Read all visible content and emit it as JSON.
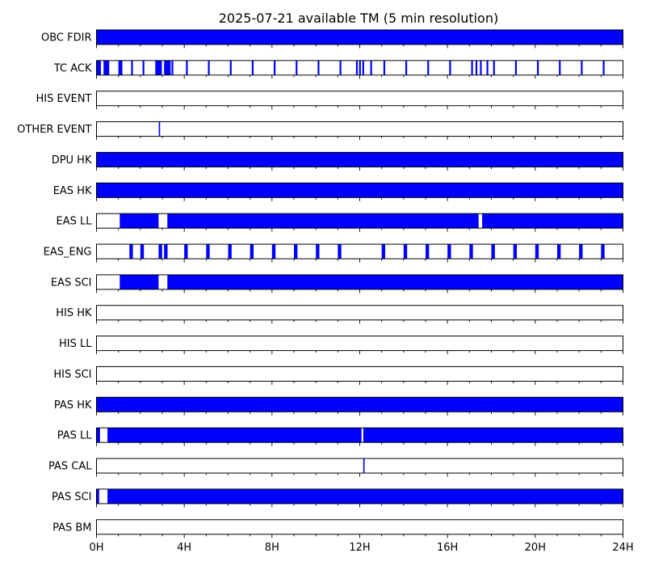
{
  "chart_data": {
    "type": "timeline",
    "title": "2025-07-21 available TM (5 min resolution)",
    "x_unit": "hours",
    "xlim": [
      0,
      24
    ],
    "x_ticks": [
      0,
      4,
      8,
      12,
      16,
      20,
      24
    ],
    "x_tick_labels": [
      "0H",
      "4H",
      "8H",
      "12H",
      "16H",
      "20H",
      "24H"
    ],
    "minor_tick_step": 1,
    "fill_color": "#0000ff",
    "rows": [
      {
        "label": "OBC FDIR",
        "intervals": [
          [
            0,
            24
          ]
        ]
      },
      {
        "label": "TC ACK",
        "intervals": [
          [
            0.02,
            0.2
          ],
          [
            0.32,
            0.58
          ],
          [
            1.0,
            1.18
          ],
          [
            1.58,
            1.66
          ],
          [
            2.1,
            2.18
          ],
          [
            2.68,
            2.98
          ],
          [
            3.08,
            3.38
          ],
          [
            3.42,
            3.5
          ],
          [
            4.08,
            4.16
          ],
          [
            5.08,
            5.16
          ],
          [
            6.08,
            6.16
          ],
          [
            7.08,
            7.16
          ],
          [
            8.08,
            8.16
          ],
          [
            9.08,
            9.16
          ],
          [
            10.08,
            10.16
          ],
          [
            11.08,
            11.16
          ],
          [
            11.83,
            11.91
          ],
          [
            11.97,
            12.05
          ],
          [
            12.12,
            12.2
          ],
          [
            12.48,
            12.56
          ],
          [
            13.08,
            13.16
          ],
          [
            14.08,
            14.16
          ],
          [
            15.08,
            15.16
          ],
          [
            16.08,
            16.16
          ],
          [
            17.08,
            17.16
          ],
          [
            17.28,
            17.36
          ],
          [
            17.48,
            17.56
          ],
          [
            17.78,
            17.86
          ],
          [
            18.08,
            18.16
          ],
          [
            19.08,
            19.16
          ],
          [
            20.08,
            20.16
          ],
          [
            21.08,
            21.16
          ],
          [
            22.08,
            22.16
          ],
          [
            23.08,
            23.16
          ]
        ]
      },
      {
        "label": "HIS EVENT",
        "intervals": []
      },
      {
        "label": "OTHER EVENT",
        "intervals": [
          [
            2.84,
            2.9
          ]
        ]
      },
      {
        "label": "DPU HK",
        "intervals": [
          [
            0,
            24
          ]
        ]
      },
      {
        "label": "EAS HK",
        "intervals": [
          [
            0,
            24
          ]
        ]
      },
      {
        "label": "EAS LL",
        "intervals": [
          [
            1.06,
            2.83
          ],
          [
            3.23,
            17.42
          ],
          [
            17.58,
            24
          ]
        ]
      },
      {
        "label": "EAS_ENG",
        "intervals": [
          [
            1.5,
            1.66
          ],
          [
            2.0,
            2.16
          ],
          [
            2.83,
            2.99
          ],
          [
            3.08,
            3.24
          ],
          [
            4.0,
            4.16
          ],
          [
            5.0,
            5.16
          ],
          [
            6.0,
            6.16
          ],
          [
            7.0,
            7.16
          ],
          [
            8.0,
            8.16
          ],
          [
            9.0,
            9.16
          ],
          [
            10.0,
            10.16
          ],
          [
            11.0,
            11.16
          ],
          [
            13.0,
            13.16
          ],
          [
            14.0,
            14.16
          ],
          [
            15.0,
            15.16
          ],
          [
            16.0,
            16.16
          ],
          [
            17.0,
            17.16
          ],
          [
            18.0,
            18.16
          ],
          [
            19.0,
            19.16
          ],
          [
            20.0,
            20.16
          ],
          [
            21.0,
            21.16
          ],
          [
            22.0,
            22.16
          ],
          [
            23.0,
            23.16
          ]
        ]
      },
      {
        "label": "EAS SCI",
        "intervals": [
          [
            1.06,
            2.83
          ],
          [
            3.23,
            24
          ]
        ]
      },
      {
        "label": "HIS HK",
        "intervals": []
      },
      {
        "label": "HIS LL",
        "intervals": []
      },
      {
        "label": "HIS SCI",
        "intervals": []
      },
      {
        "label": "PAS HK",
        "intervals": [
          [
            0,
            24
          ]
        ]
      },
      {
        "label": "PAS LL",
        "intervals": [
          [
            0.0,
            0.16
          ],
          [
            0.5,
            12.08
          ],
          [
            12.16,
            24
          ]
        ]
      },
      {
        "label": "PAS CAL",
        "intervals": [
          [
            12.16,
            12.22
          ]
        ]
      },
      {
        "label": "PAS SCI",
        "intervals": [
          [
            0.0,
            0.12
          ],
          [
            0.5,
            24
          ]
        ]
      },
      {
        "label": "PAS BM",
        "intervals": []
      }
    ]
  }
}
